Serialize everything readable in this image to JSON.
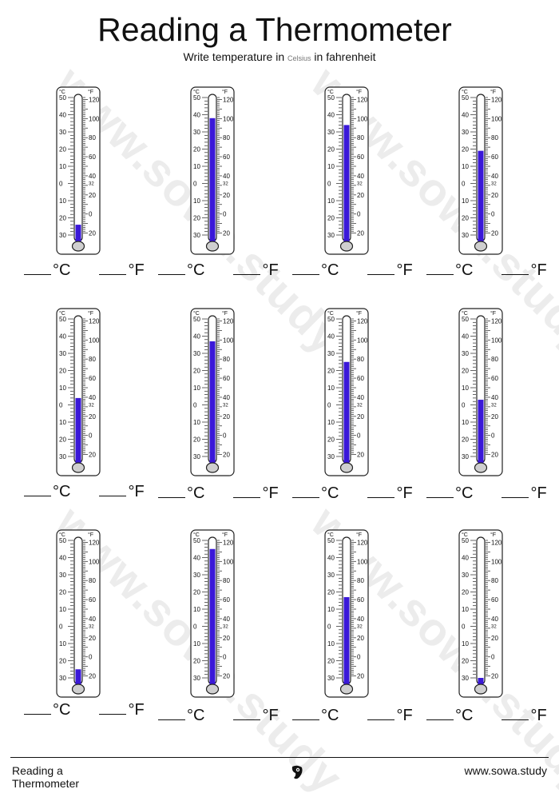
{
  "page": {
    "title": "Reading a Thermometer",
    "subtitle": "Write temperature in ",
    "subtitle_obscured": "Celsius",
    "subtitle_end": " in fahrenheit"
  },
  "watermark_text": "www.sowa.study",
  "scale": {
    "celsius_unit": "°C",
    "fahrenheit_unit": "°F",
    "celsius_labels": [
      "50",
      "40",
      "30",
      "20",
      "10",
      "0",
      "10",
      "20",
      "30"
    ],
    "fahrenheit_labels": [
      "120",
      "100",
      "80",
      "60",
      "40",
      "32",
      "20",
      "0",
      "20"
    ]
  },
  "answer": {
    "celsius_unit": "°C",
    "fahrenheit_unit": "°F"
  },
  "colors": {
    "mercury": "#3a18d8",
    "bulb": "#cfcfcf",
    "text": "#111111"
  },
  "thermometers": [
    {
      "celsius": -24
    },
    {
      "celsius": 38
    },
    {
      "celsius": 34
    },
    {
      "celsius": 19
    },
    {
      "celsius": 4
    },
    {
      "celsius": 37
    },
    {
      "celsius": 25
    },
    {
      "celsius": 3
    },
    {
      "celsius": -25
    },
    {
      "celsius": 45
    },
    {
      "celsius": 17
    },
    {
      "celsius": -30
    }
  ],
  "footer": {
    "left_line1": "Reading a",
    "left_line2": "Thermometer",
    "right": "www.sowa.study",
    "logo_icon": "owl-logo-icon"
  }
}
